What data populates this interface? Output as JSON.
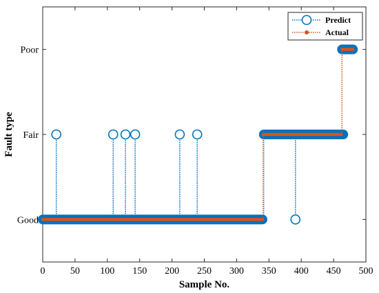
{
  "chart_data": {
    "type": "line",
    "xlabel": "Sample No.",
    "ylabel": "Fault type",
    "xlim": [
      0,
      500
    ],
    "x_ticks": [
      0,
      50,
      100,
      150,
      200,
      250,
      300,
      350,
      400,
      450,
      500
    ],
    "ylim": [
      0.5,
      3.5
    ],
    "y_ticks": [
      1,
      2,
      3
    ],
    "y_tick_labels": [
      "Good",
      "Fair",
      "Poor"
    ],
    "grid": false,
    "legend_position": "top-right",
    "series": [
      {
        "name": "Predict",
        "color": "#0072BD",
        "line_style": "dotted",
        "marker": "circle",
        "segments": [
          {
            "x_start": 0,
            "x_end": 340,
            "y": 1
          },
          {
            "x_start": 342,
            "x_end": 465,
            "y": 2
          },
          {
            "x_start": 463,
            "x_end": 480,
            "y": 3
          }
        ],
        "spikes": [
          {
            "x": 21,
            "y": 2
          },
          {
            "x": 109,
            "y": 2
          },
          {
            "x": 128,
            "y": 2
          },
          {
            "x": 143,
            "y": 2
          },
          {
            "x": 212,
            "y": 2
          },
          {
            "x": 239,
            "y": 2
          },
          {
            "x": 391,
            "y": 1
          }
        ]
      },
      {
        "name": "Actual",
        "color": "#D95319",
        "line_style": "dotted",
        "marker": "dot",
        "segments": [
          {
            "x_start": 0,
            "x_end": 340,
            "y": 1
          },
          {
            "x_start": 341,
            "x_end": 462,
            "y": 2
          },
          {
            "x_start": 463,
            "x_end": 480,
            "y": 3
          }
        ]
      }
    ]
  }
}
